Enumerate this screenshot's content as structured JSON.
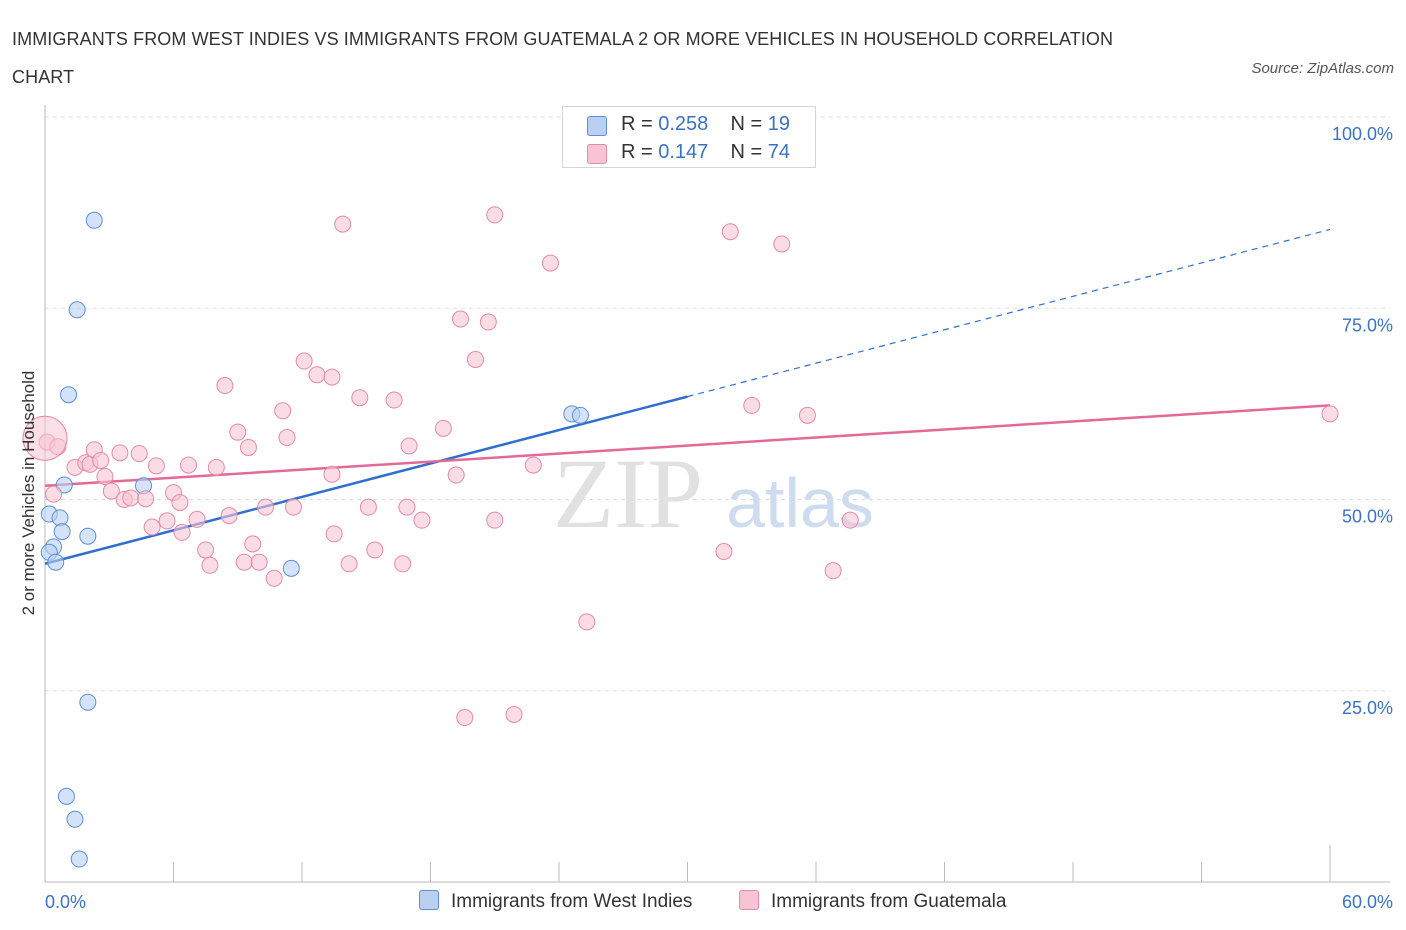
{
  "title": "IMMIGRANTS FROM WEST INDIES VS IMMIGRANTS FROM GUATEMALA 2 OR MORE VEHICLES IN HOUSEHOLD CORRELATION CHART",
  "source": "Source: ZipAtlas.com",
  "watermark": {
    "zip": "ZIP",
    "atlas": "atlas"
  },
  "colors": {
    "blue": "#5b8fd8",
    "blue_fill": "#b9d0f3",
    "blue_line": "#2f6fcf",
    "pink": "#e58aa8",
    "pink_fill": "#f7c4d3",
    "pink_line": "#e36a95",
    "axis_text": "#3a72c4",
    "grid": "#dddddd"
  },
  "legend": {
    "r_label": "R =",
    "n_label": "N =",
    "series": [
      {
        "r": "0.258",
        "n": "19"
      },
      {
        "r": "0.147",
        "n": "74"
      }
    ]
  },
  "bottom_legend": [
    "Immigrants from West Indies",
    "Immigrants from Guatemala"
  ],
  "chart_data": {
    "type": "scatter",
    "title": "IMMIGRANTS FROM WEST INDIES VS IMMIGRANTS FROM GUATEMALA 2 OR MORE VEHICLES IN HOUSEHOLD CORRELATION CHART",
    "xlabel": "",
    "ylabel": "2 or more Vehicles in Household",
    "xlim": [
      0,
      60
    ],
    "ylim": [
      0,
      100
    ],
    "x_tick_labels": [
      "0.0%",
      "60.0%"
    ],
    "y_ticks": [
      25,
      50,
      75,
      100
    ],
    "y_tick_labels": [
      "25.0%",
      "50.0%",
      "75.0%",
      "100.0%"
    ],
    "grid": true,
    "legend_position": "top-center",
    "series": [
      {
        "name": "Immigrants from West Indies",
        "color": "#5b8fd8",
        "points": [
          [
            2.3,
            86.5
          ],
          [
            1.5,
            74.8
          ],
          [
            1.1,
            63.7
          ],
          [
            0.2,
            48.1
          ],
          [
            0.7,
            47.6
          ],
          [
            0.9,
            51.9
          ],
          [
            0.8,
            45.8
          ],
          [
            2.0,
            45.2
          ],
          [
            0.4,
            43.8
          ],
          [
            0.2,
            43.1
          ],
          [
            0.5,
            41.8
          ],
          [
            4.6,
            51.8
          ],
          [
            11.5,
            41.0
          ],
          [
            24.6,
            61.2
          ],
          [
            25.0,
            61.0
          ],
          [
            2.0,
            23.5
          ],
          [
            1.0,
            11.2
          ],
          [
            1.4,
            8.2
          ],
          [
            1.6,
            3.0
          ]
        ],
        "trend": {
          "x": [
            0.0,
            30.0,
            60.0
          ],
          "y": [
            41.6,
            63.4,
            85.3
          ],
          "solid_until_x": 30.0
        }
      },
      {
        "name": "Immigrants from Guatemala",
        "color": "#e58aa8",
        "points": [
          [
            0.1,
            57.5
          ],
          [
            0.6,
            56.9
          ],
          [
            0.4,
            50.7
          ],
          [
            1.4,
            54.2
          ],
          [
            1.9,
            54.8
          ],
          [
            2.1,
            54.6
          ],
          [
            2.3,
            56.5
          ],
          [
            2.6,
            55.1
          ],
          [
            2.8,
            53.0
          ],
          [
            3.1,
            51.1
          ],
          [
            3.7,
            50.0
          ],
          [
            3.5,
            56.1
          ],
          [
            4.0,
            50.2
          ],
          [
            4.4,
            56.0
          ],
          [
            4.7,
            50.1
          ],
          [
            5.0,
            46.4
          ],
          [
            5.2,
            54.4
          ],
          [
            5.7,
            47.2
          ],
          [
            6.0,
            50.9
          ],
          [
            6.3,
            49.6
          ],
          [
            6.4,
            45.7
          ],
          [
            6.7,
            54.5
          ],
          [
            7.1,
            47.4
          ],
          [
            7.5,
            43.4
          ],
          [
            7.7,
            41.4
          ],
          [
            8.0,
            54.2
          ],
          [
            8.4,
            64.9
          ],
          [
            8.6,
            47.9
          ],
          [
            9.0,
            58.8
          ],
          [
            9.3,
            41.8
          ],
          [
            9.5,
            56.8
          ],
          [
            9.7,
            44.2
          ],
          [
            10.0,
            41.8
          ],
          [
            10.3,
            49.0
          ],
          [
            10.7,
            39.7
          ],
          [
            11.1,
            61.6
          ],
          [
            11.3,
            58.1
          ],
          [
            11.6,
            49.0
          ],
          [
            12.1,
            68.1
          ],
          [
            12.7,
            66.3
          ],
          [
            13.4,
            66.0
          ],
          [
            13.4,
            53.3
          ],
          [
            13.5,
            45.5
          ],
          [
            13.9,
            86.0
          ],
          [
            14.2,
            41.6
          ],
          [
            14.7,
            63.3
          ],
          [
            15.1,
            49.0
          ],
          [
            15.4,
            43.4
          ],
          [
            16.3,
            63.0
          ],
          [
            16.9,
            49.0
          ],
          [
            16.7,
            41.6
          ],
          [
            17.0,
            57.0
          ],
          [
            17.6,
            47.3
          ],
          [
            18.6,
            59.3
          ],
          [
            19.2,
            53.2
          ],
          [
            19.4,
            73.6
          ],
          [
            19.6,
            21.5
          ],
          [
            20.1,
            68.3
          ],
          [
            20.7,
            73.2
          ],
          [
            21.0,
            47.3
          ],
          [
            21.0,
            87.2
          ],
          [
            21.9,
            21.9
          ],
          [
            22.8,
            54.5
          ],
          [
            23.6,
            80.9
          ],
          [
            25.3,
            34.0
          ],
          [
            31.7,
            43.2
          ],
          [
            32.0,
            85.0
          ],
          [
            33.0,
            62.3
          ],
          [
            34.4,
            83.4
          ],
          [
            35.6,
            61.0
          ],
          [
            36.8,
            40.7
          ],
          [
            37.6,
            47.3
          ],
          [
            60.0,
            61.2
          ],
          [
            0.0,
            58.0
          ]
        ],
        "trend": {
          "x": [
            0.0,
            60.0
          ],
          "y": [
            51.8,
            62.3
          ]
        }
      }
    ]
  }
}
